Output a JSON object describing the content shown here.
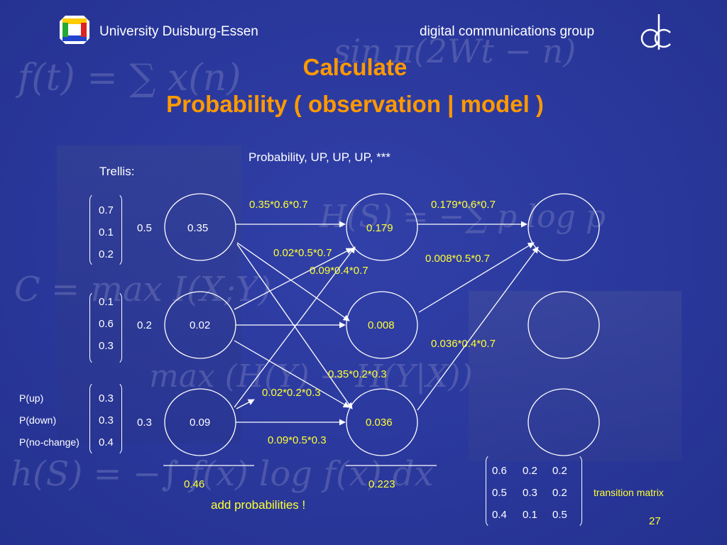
{
  "header": {
    "university": "University Duisburg-Essen",
    "group": "digital communications group",
    "slide_number": "27"
  },
  "title": {
    "line1": "Calculate",
    "line2": "Probability ( observation | model )"
  },
  "subtitle": "Probability, UP, UP, UP, ***",
  "trellis_label": "Trellis:",
  "emission": {
    "state1": [
      "0.7",
      "0.1",
      "0.2"
    ],
    "state2": [
      "0.1",
      "0.6",
      "0.3"
    ],
    "state3": [
      "0.3",
      "0.3",
      "0.4"
    ],
    "labels": [
      "P(up)",
      "P(down)",
      "P(no-change)"
    ]
  },
  "initial": [
    "0.5",
    "0.2",
    "0.3"
  ],
  "nodes": {
    "col1": [
      "0.35",
      "0.02",
      "0.09"
    ],
    "col2": [
      "0.179",
      "0.008",
      "0.036"
    ]
  },
  "edge_labels": {
    "e1": "0.35*0.6*0.7",
    "e2": "0.02*0.5*0.7",
    "e3": "0.09*0.4*0.7",
    "e4": "0.35*0.2*0.3",
    "e5": "0.02*0.2*0.3",
    "e6": "0.09*0.5*0.3",
    "e7": "0.179*0.6*0.7",
    "e8": "0.008*0.5*0.7",
    "e9": "0.036*0.4*0.7"
  },
  "sums": {
    "t1": "0.46",
    "t2": "0.223"
  },
  "add_note": "add probabilities !",
  "transition": {
    "rows": [
      [
        "0.6",
        "0.2",
        "0.2"
      ],
      [
        "0.5",
        "0.3",
        "0.2"
      ],
      [
        "0.4",
        "0.1",
        "0.5"
      ]
    ],
    "label": "transition matrix"
  },
  "colors": {
    "background": "#2b3a9e",
    "title": "#ff9900",
    "highlight": "#ffff33",
    "text": "#ffffff"
  }
}
